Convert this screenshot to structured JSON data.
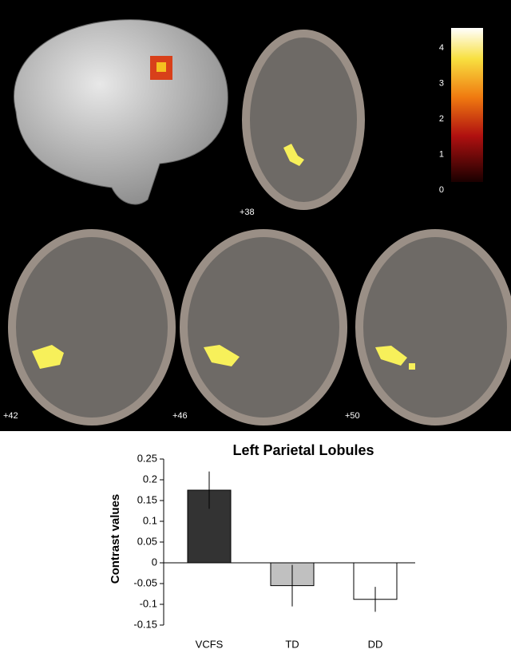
{
  "brain_panel": {
    "slice_labels": [
      "+38",
      "+42",
      "+46",
      "+50"
    ],
    "colorbar_ticks": [
      0,
      1,
      2,
      3,
      4
    ]
  },
  "chart_data": {
    "type": "bar",
    "title": "Left Parietal Lobules",
    "y_label": "Contrast values",
    "categories": [
      "VCFS",
      "TD",
      "DD"
    ],
    "values": [
      0.175,
      -0.055,
      -0.088
    ],
    "errors": [
      0.045,
      0.05,
      0.03
    ],
    "colors": [
      "#333333",
      "#c0c0c0",
      "#ffffff"
    ],
    "ylim": [
      -0.15,
      0.25
    ],
    "yticks": [
      -0.15,
      -0.1,
      -0.05,
      0,
      0.05,
      0.1,
      0.15,
      0.2,
      0.25
    ]
  }
}
